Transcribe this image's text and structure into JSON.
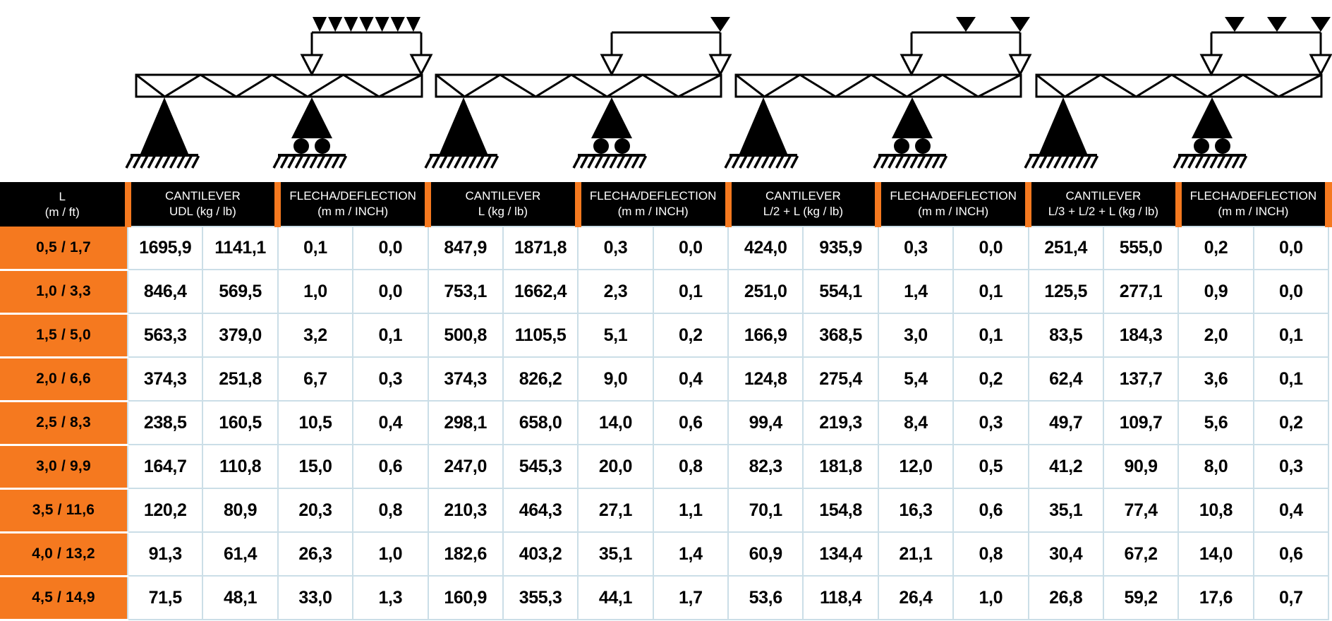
{
  "colors": {
    "accent_orange": "#F5791F",
    "header_bg": "#000000",
    "header_text": "#FFFFFF",
    "grid_border": "#CBDEE7",
    "diagram_ink": "#000000"
  },
  "diagrams": [
    {
      "name": "truss-cantilever-udl",
      "description": "simply supported truss with cantilever, uniformly distributed load on cantilever"
    },
    {
      "name": "truss-cantilever-point-L",
      "description": "truss cantilever with single point load at tip (L)"
    },
    {
      "name": "truss-cantilever-points-L2-L",
      "description": "truss cantilever with point loads at L/2 and L"
    },
    {
      "name": "truss-cantilever-points-L3-L2-L",
      "description": "truss cantilever with point loads at L/3, L/2 and L"
    }
  ],
  "table": {
    "row_label_header": {
      "line1": "L",
      "line2": "(m / ft)"
    },
    "column_groups": [
      {
        "line1": "CANTILEVER",
        "line2": "UDL (kg / lb)"
      },
      {
        "line1": "FLECHA/DEFLECTION",
        "line2": "(m m / INCH)"
      },
      {
        "line1": "CANTILEVER",
        "line2": "L (kg / lb)"
      },
      {
        "line1": "FLECHA/DEFLECTION",
        "line2": "(m m / INCH)"
      },
      {
        "line1": "CANTILEVER",
        "line2": "L/2 + L (kg / lb)"
      },
      {
        "line1": "FLECHA/DEFLECTION",
        "line2": "(m m / INCH)"
      },
      {
        "line1": "CANTILEVER",
        "line2": "L/3 + L/2 + L (kg / lb)"
      },
      {
        "line1": "FLECHA/DEFLECTION",
        "line2": "(m m / INCH)"
      }
    ],
    "rows": [
      {
        "label": "0,5 / 1,7",
        "values": [
          "1695,9",
          "1141,1",
          "0,1",
          "0,0",
          "847,9",
          "1871,8",
          "0,3",
          "0,0",
          "424,0",
          "935,9",
          "0,3",
          "0,0",
          "251,4",
          "555,0",
          "0,2",
          "0,0"
        ]
      },
      {
        "label": "1,0 / 3,3",
        "values": [
          "846,4",
          "569,5",
          "1,0",
          "0,0",
          "753,1",
          "1662,4",
          "2,3",
          "0,1",
          "251,0",
          "554,1",
          "1,4",
          "0,1",
          "125,5",
          "277,1",
          "0,9",
          "0,0"
        ]
      },
      {
        "label": "1,5 / 5,0",
        "values": [
          "563,3",
          "379,0",
          "3,2",
          "0,1",
          "500,8",
          "1105,5",
          "5,1",
          "0,2",
          "166,9",
          "368,5",
          "3,0",
          "0,1",
          "83,5",
          "184,3",
          "2,0",
          "0,1"
        ]
      },
      {
        "label": "2,0 / 6,6",
        "values": [
          "374,3",
          "251,8",
          "6,7",
          "0,3",
          "374,3",
          "826,2",
          "9,0",
          "0,4",
          "124,8",
          "275,4",
          "5,4",
          "0,2",
          "62,4",
          "137,7",
          "3,6",
          "0,1"
        ]
      },
      {
        "label": "2,5 / 8,3",
        "values": [
          "238,5",
          "160,5",
          "10,5",
          "0,4",
          "298,1",
          "658,0",
          "14,0",
          "0,6",
          "99,4",
          "219,3",
          "8,4",
          "0,3",
          "49,7",
          "109,7",
          "5,6",
          "0,2"
        ]
      },
      {
        "label": "3,0 / 9,9",
        "values": [
          "164,7",
          "110,8",
          "15,0",
          "0,6",
          "247,0",
          "545,3",
          "20,0",
          "0,8",
          "82,3",
          "181,8",
          "12,0",
          "0,5",
          "41,2",
          "90,9",
          "8,0",
          "0,3"
        ]
      },
      {
        "label": "3,5 / 11,6",
        "values": [
          "120,2",
          "80,9",
          "20,3",
          "0,8",
          "210,3",
          "464,3",
          "27,1",
          "1,1",
          "70,1",
          "154,8",
          "16,3",
          "0,6",
          "35,1",
          "77,4",
          "10,8",
          "0,4"
        ]
      },
      {
        "label": "4,0 / 13,2",
        "values": [
          "91,3",
          "61,4",
          "26,3",
          "1,0",
          "182,6",
          "403,2",
          "35,1",
          "1,4",
          "60,9",
          "134,4",
          "21,1",
          "0,8",
          "30,4",
          "67,2",
          "14,0",
          "0,6"
        ]
      },
      {
        "label": "4,5 / 14,9",
        "values": [
          "71,5",
          "48,1",
          "33,0",
          "1,3",
          "160,9",
          "355,3",
          "44,1",
          "1,7",
          "53,6",
          "118,4",
          "26,4",
          "1,0",
          "26,8",
          "59,2",
          "17,6",
          "0,7"
        ]
      }
    ]
  }
}
